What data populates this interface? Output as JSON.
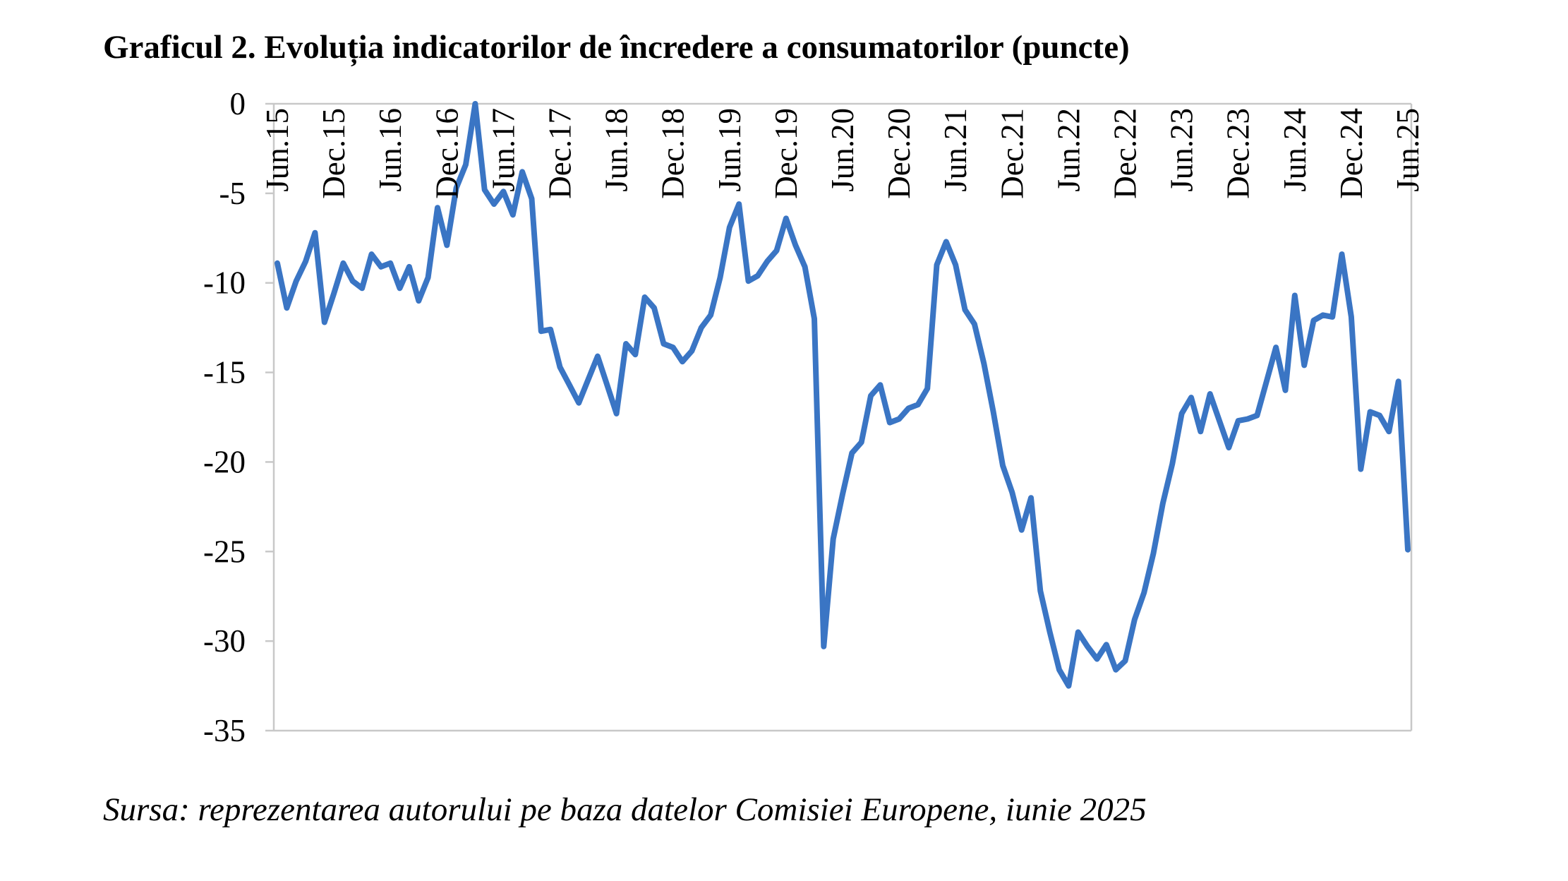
{
  "title": "Graficul 2. Evoluția indicatorilor de încredere a consumatorilor (puncte)",
  "source": "Sursa: reprezentarea autorului pe baza datelor Comisiei Europene, iunie 2025",
  "colors": {
    "series": "#3a75c4",
    "axis": "#c8c8c8",
    "text": "#000000",
    "background": "#ffffff"
  },
  "chart_data": {
    "type": "line",
    "title": "Graficul 2. Evoluția indicatorilor de încredere a consumatorilor (puncte)",
    "xlabel": "",
    "ylabel": "",
    "ylim": [
      -35,
      0
    ],
    "yticks": [
      0,
      -5,
      -10,
      -15,
      -20,
      -25,
      -30,
      -35
    ],
    "xtick_labels": [
      "Jun.15",
      "Dec.15",
      "Jun.16",
      "Dec.16",
      "Jun.17",
      "Dec.17",
      "Jun.18",
      "Dec.18",
      "Jun.19",
      "Dec.19",
      "Jun.20",
      "Dec.20",
      "Jun.21",
      "Dec.21",
      "Jun.22",
      "Dec.22",
      "Jun.23",
      "Dec.23",
      "Jun.24",
      "Dec.24",
      "Jun.25"
    ],
    "xtick_position": "top",
    "grid": false,
    "legend": "none",
    "x_start": "Jun.15",
    "x_end": "Jun.25",
    "x_frequency": "monthly",
    "series": [
      {
        "values": [
          -8.9,
          -11.4,
          -9.9,
          -8.8,
          -7.2,
          -12.2,
          -10.6,
          -8.9,
          -9.9,
          -10.3,
          -8.4,
          -9.1,
          -8.9,
          -10.3,
          -9.1,
          -11.0,
          -9.7,
          -5.8,
          -7.9,
          -4.7,
          -3.4,
          0.0,
          -4.8,
          -5.6,
          -4.9,
          -6.2,
          -3.8,
          -5.3,
          -12.7,
          -12.6,
          -14.7,
          -15.7,
          -16.7,
          -15.4,
          -14.1,
          -15.7,
          -17.3,
          -13.4,
          -14.0,
          -10.8,
          -11.4,
          -13.4,
          -13.6,
          -14.4,
          -13.8,
          -12.5,
          -11.8,
          -9.7,
          -6.9,
          -5.6,
          -9.9,
          -9.6,
          -8.8,
          -8.2,
          -6.4,
          -7.9,
          -9.1,
          -12.0,
          -30.3,
          -24.3,
          -21.8,
          -19.5,
          -18.9,
          -16.3,
          -15.7,
          -17.8,
          -17.6,
          -17.0,
          -16.8,
          -15.9,
          -9.0,
          -7.7,
          -9.0,
          -11.5,
          -12.3,
          -14.5,
          -17.2,
          -20.2,
          -21.7,
          -23.8,
          -22.0,
          -27.2,
          -29.5,
          -31.6,
          -32.5,
          -29.5,
          -30.3,
          -31.0,
          -30.2,
          -31.6,
          -31.1,
          -28.8,
          -27.3,
          -25.1,
          -22.3,
          -20.1,
          -17.3,
          -16.4,
          -18.3,
          -16.2,
          -17.7,
          -19.2,
          -17.7,
          -17.6,
          -17.4,
          -15.5,
          -13.6,
          -16.0,
          -10.7,
          -14.6,
          -12.1,
          -11.8,
          -11.9,
          -8.4,
          -11.9,
          -20.4,
          -17.2,
          -17.4,
          -18.3,
          -15.5,
          -24.9
        ]
      }
    ]
  }
}
